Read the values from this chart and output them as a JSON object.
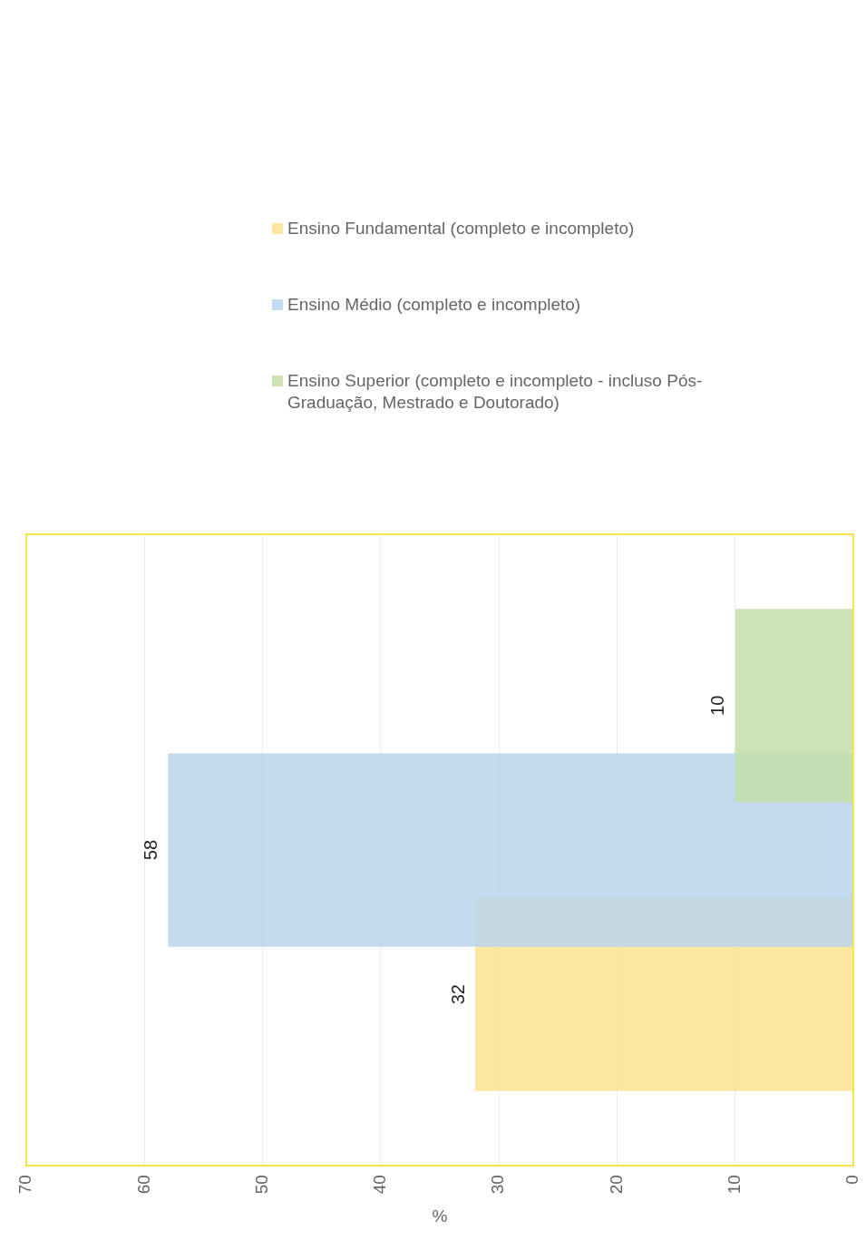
{
  "chart_data": {
    "type": "bar",
    "orientation": "horizontal",
    "xlabel": "%",
    "categories": [
      null
    ],
    "series": [
      {
        "name": "Ensino Fundamental (completo e incompleto)",
        "color": "#fde28f",
        "values": [
          32
        ]
      },
      {
        "name": "Ensino Médio (completo e incompleto)",
        "color": "#b8d4ec",
        "values": [
          58
        ]
      },
      {
        "name": "Ensino Superior (completo e incompleto - incluso Pós-Graduação, Mestrado e Doutorado)",
        "color": "#c4dea8",
        "values": [
          10
        ]
      }
    ],
    "xlim": [
      70,
      0
    ],
    "xticks": [
      0,
      10,
      20,
      30,
      40,
      50,
      60,
      70
    ],
    "grid": "x",
    "legend": "top",
    "data_labels": true,
    "tick_labels": "x"
  }
}
